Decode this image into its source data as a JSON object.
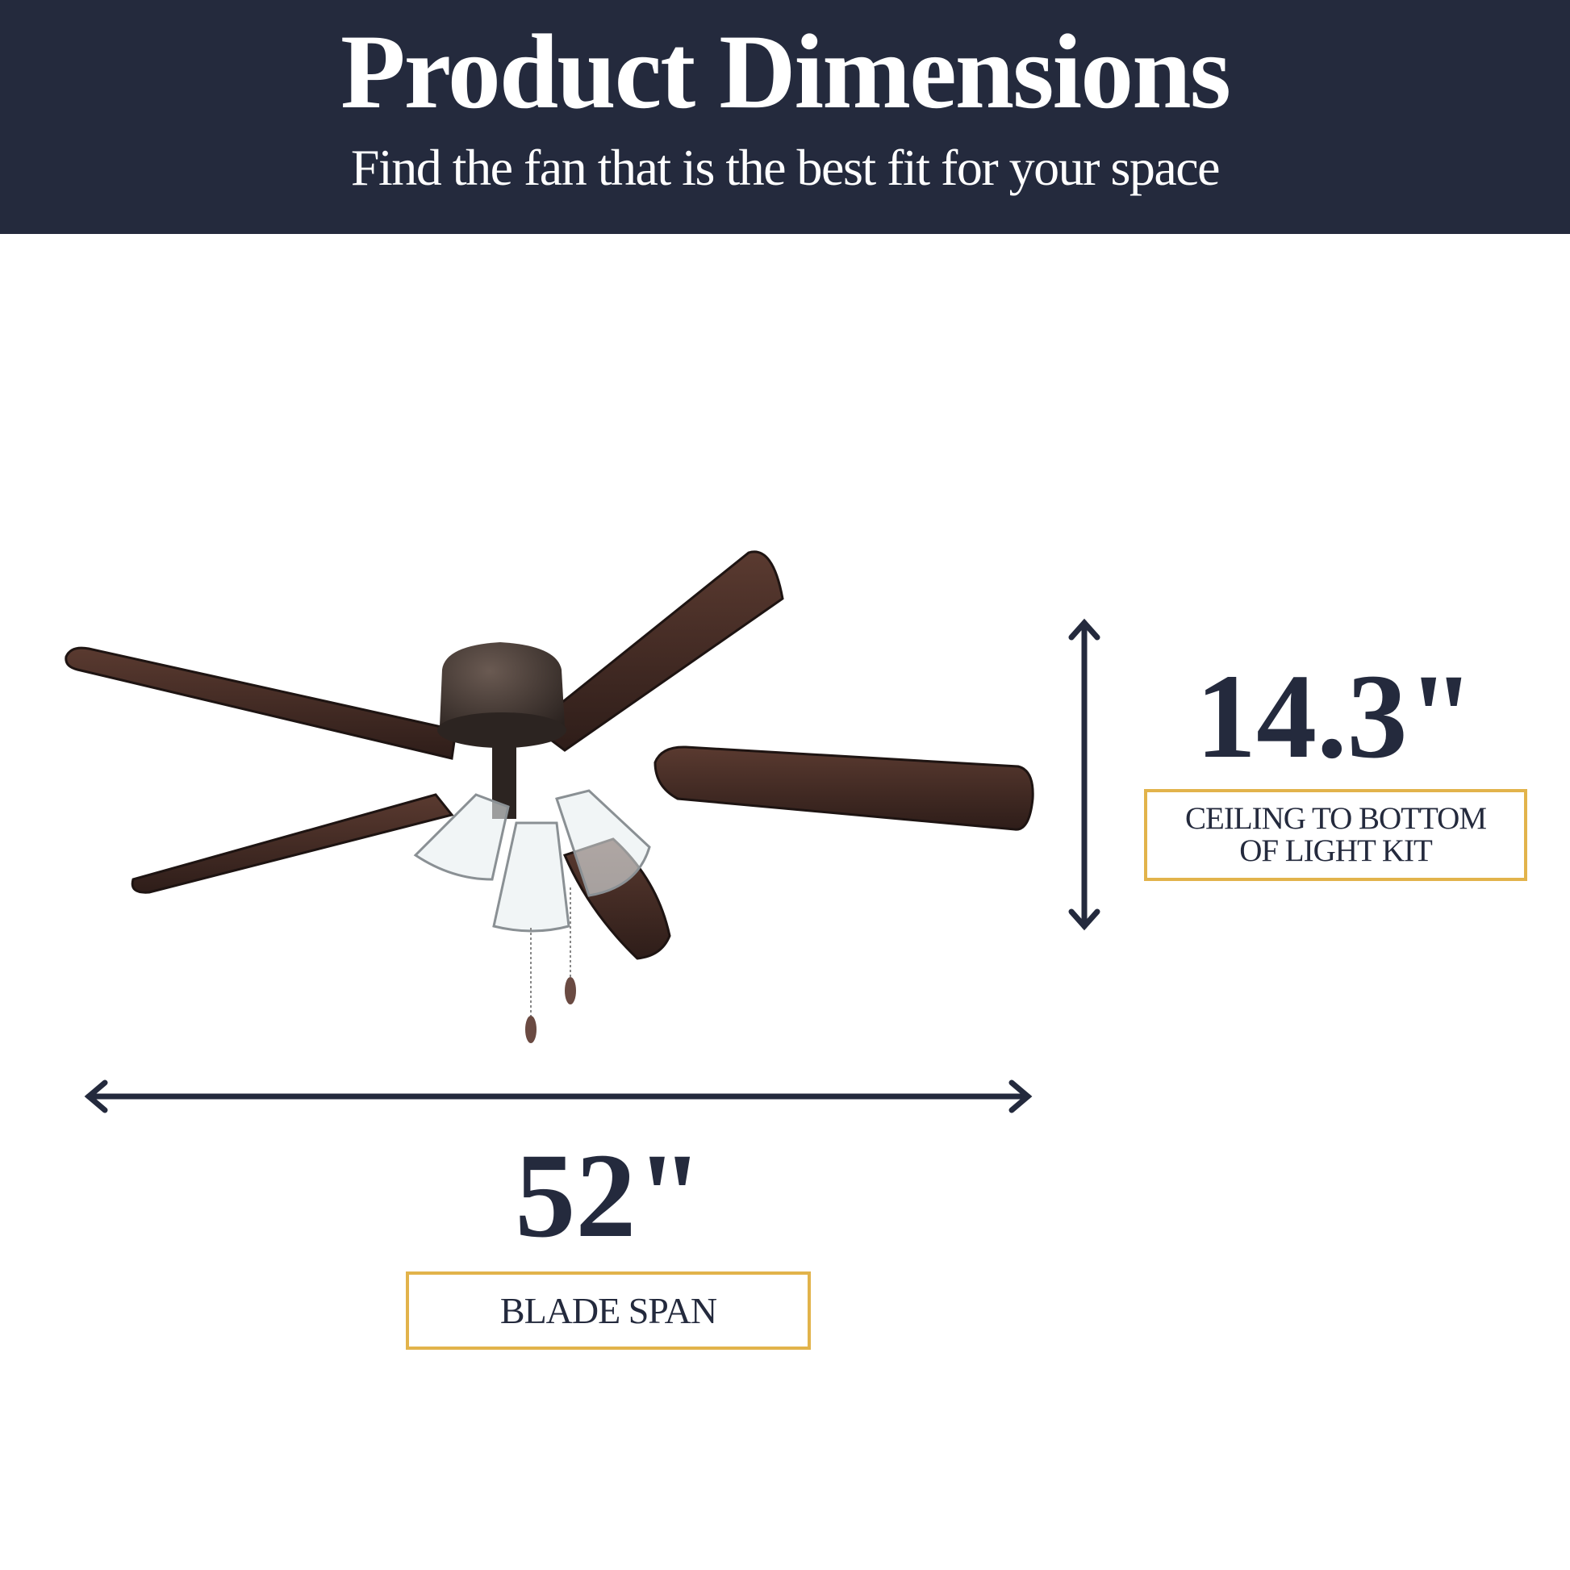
{
  "header": {
    "title": "Product Dimensions",
    "subtitle": "Find the fan that is the best fit for your space"
  },
  "dimensions": {
    "height": {
      "value": "14.3\"",
      "label_line1": "CEILING TO BOTTOM",
      "label_line2": "OF LIGHT KIT"
    },
    "span": {
      "value": "52\"",
      "label": "BLADE SPAN"
    }
  },
  "colors": {
    "navy": "#242a3d",
    "gold": "#e2b34b",
    "blade": "#3a2520",
    "bronze": "#3b2f2b"
  },
  "image": {
    "subject": "ceiling-fan-with-3-light-kit"
  }
}
